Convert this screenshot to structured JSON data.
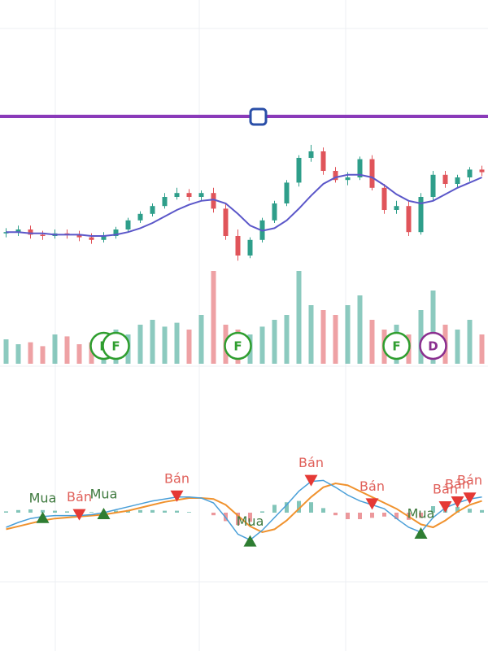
{
  "chart_data": {
    "type": "candlestick",
    "open": [
      27,
      28,
      30,
      26,
      25,
      27,
      26,
      24,
      22,
      25,
      30,
      37,
      42,
      48,
      55,
      58,
      55,
      58,
      46,
      25,
      10,
      22,
      37,
      50,
      66,
      85,
      90,
      75,
      68,
      70,
      84,
      62,
      45,
      48,
      28,
      55,
      72,
      65,
      70,
      76
    ],
    "high": [
      31,
      33,
      33,
      29,
      30,
      30,
      29,
      27,
      28,
      32,
      39,
      44,
      50,
      58,
      62,
      61,
      60,
      62,
      50,
      30,
      24,
      39,
      52,
      68,
      87,
      95,
      93,
      78,
      74,
      86,
      87,
      65,
      52,
      52,
      58,
      75,
      75,
      72,
      78,
      79
    ],
    "low": [
      24,
      25,
      23,
      22,
      23,
      23,
      21,
      19,
      20,
      23,
      28,
      35,
      40,
      46,
      53,
      52,
      52,
      43,
      22,
      6,
      8,
      20,
      35,
      48,
      63,
      82,
      72,
      66,
      64,
      68,
      60,
      42,
      42,
      25,
      26,
      52,
      62,
      62,
      67,
      71
    ],
    "close": [
      28,
      30,
      26,
      25,
      27,
      26,
      24,
      22,
      25,
      30,
      37,
      42,
      48,
      55,
      58,
      55,
      58,
      46,
      25,
      10,
      22,
      37,
      50,
      66,
      85,
      90,
      75,
      68,
      70,
      84,
      62,
      45,
      48,
      28,
      55,
      72,
      65,
      70,
      76,
      74
    ],
    "ma": [
      28,
      28,
      27,
      27,
      26,
      26,
      26,
      25,
      25,
      26,
      28,
      31,
      35,
      40,
      45,
      49,
      52,
      53,
      50,
      42,
      33,
      29,
      31,
      37,
      46,
      56,
      65,
      70,
      72,
      72,
      70,
      64,
      57,
      52,
      50,
      52,
      57,
      62,
      66,
      70
    ],
    "volume": [
      25,
      20,
      22,
      18,
      30,
      28,
      20,
      22,
      25,
      35,
      30,
      40,
      45,
      38,
      42,
      35,
      50,
      95,
      40,
      35,
      30,
      38,
      45,
      50,
      95,
      60,
      55,
      50,
      60,
      70,
      45,
      35,
      40,
      30,
      55,
      75,
      40,
      35,
      45,
      30
    ],
    "macd": [
      -15,
      -10,
      -6,
      -4,
      -3,
      -3,
      -3,
      -2,
      0,
      3,
      6,
      9,
      12,
      14,
      16,
      16,
      15,
      10,
      -5,
      -22,
      -28,
      -18,
      -5,
      8,
      22,
      32,
      33,
      26,
      18,
      12,
      8,
      4,
      -6,
      -15,
      -20,
      -5,
      5,
      10,
      14,
      16
    ],
    "signal": [
      -17,
      -14,
      -11,
      -8,
      -6,
      -5,
      -4,
      -3,
      -2,
      0,
      2,
      5,
      8,
      11,
      13,
      15,
      15,
      14,
      8,
      -3,
      -14,
      -20,
      -17,
      -8,
      4,
      16,
      26,
      30,
      28,
      22,
      16,
      10,
      4,
      -4,
      -12,
      -15,
      -8,
      1,
      8,
      12
    ],
    "hist": [
      2,
      4,
      5,
      4,
      3,
      2,
      1,
      1,
      2,
      3,
      4,
      4,
      4,
      3,
      3,
      1,
      0,
      -4,
      -13,
      -19,
      -14,
      2,
      12,
      16,
      18,
      16,
      7,
      -4,
      -10,
      -10,
      -8,
      -6,
      -10,
      -11,
      -8,
      10,
      13,
      9,
      6,
      4
    ],
    "events": [
      {
        "label": "F",
        "index": 8
      },
      {
        "label": "F",
        "index": 9
      },
      {
        "label": "F",
        "index": 19
      },
      {
        "label": "F",
        "index": 32
      },
      {
        "label": "D",
        "index": 35
      }
    ],
    "signals": [
      {
        "label": "Mua",
        "index": 3
      },
      {
        "label": "Bán",
        "index": 6
      },
      {
        "label": "Mua",
        "index": 8
      },
      {
        "label": "Bán",
        "index": 14
      },
      {
        "label": "Mua",
        "index": 20
      },
      {
        "label": "Bán",
        "index": 25
      },
      {
        "label": "Bán",
        "index": 30
      },
      {
        "label": "Mua",
        "index": 34
      },
      {
        "label": "Bán",
        "index": 36
      },
      {
        "label": "Bán",
        "index": 37
      },
      {
        "label": "Bán",
        "index": 38
      }
    ],
    "ylim": [
      0,
      100
    ],
    "up_color": "#2e9e8a",
    "down_color": "#e0545a",
    "ma_color": "#5b57c9",
    "macd_color": "#4a9fd8",
    "signal_color": "#f0922e"
  }
}
